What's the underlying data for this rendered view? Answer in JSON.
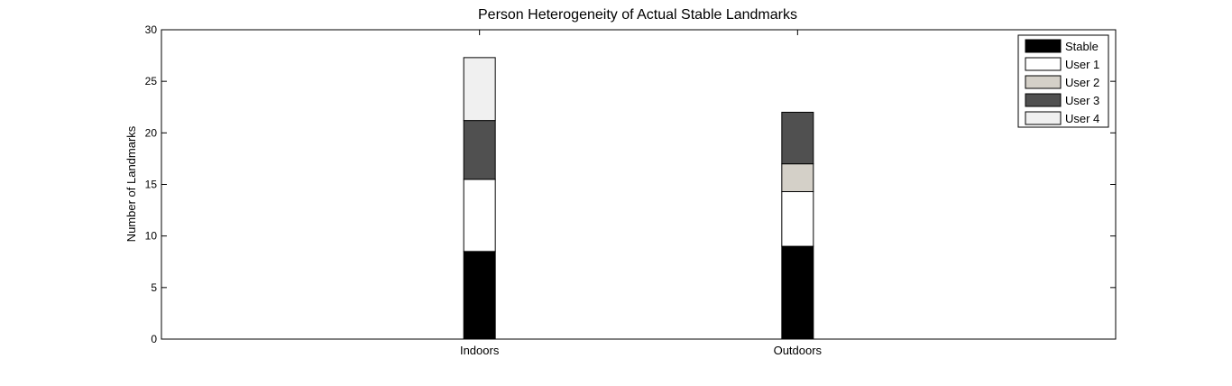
{
  "chart_data": {
    "type": "bar",
    "stacked": true,
    "title": "Person Heterogeneity of Actual Stable Landmarks",
    "xlabel": "",
    "ylabel": "Number of Landmarks",
    "categories": [
      "Indoors",
      "Outdoors"
    ],
    "ylim": [
      0,
      30
    ],
    "yticks": [
      0,
      5,
      10,
      15,
      20,
      25,
      30
    ],
    "grid": false,
    "legend_position": "top-right",
    "series": [
      {
        "name": "Stable",
        "values": [
          8.5,
          9.0
        ],
        "color": "#000000"
      },
      {
        "name": "User 1",
        "values": [
          7.0,
          5.3
        ],
        "color": "#ffffff"
      },
      {
        "name": "User 2",
        "values": [
          0.0,
          2.7
        ],
        "color": "#d4d0c8"
      },
      {
        "name": "User 3",
        "values": [
          5.7,
          5.0
        ],
        "color": "#505050"
      },
      {
        "name": "User 4",
        "values": [
          6.1,
          0.0
        ],
        "color": "#f0f0f0"
      }
    ]
  }
}
